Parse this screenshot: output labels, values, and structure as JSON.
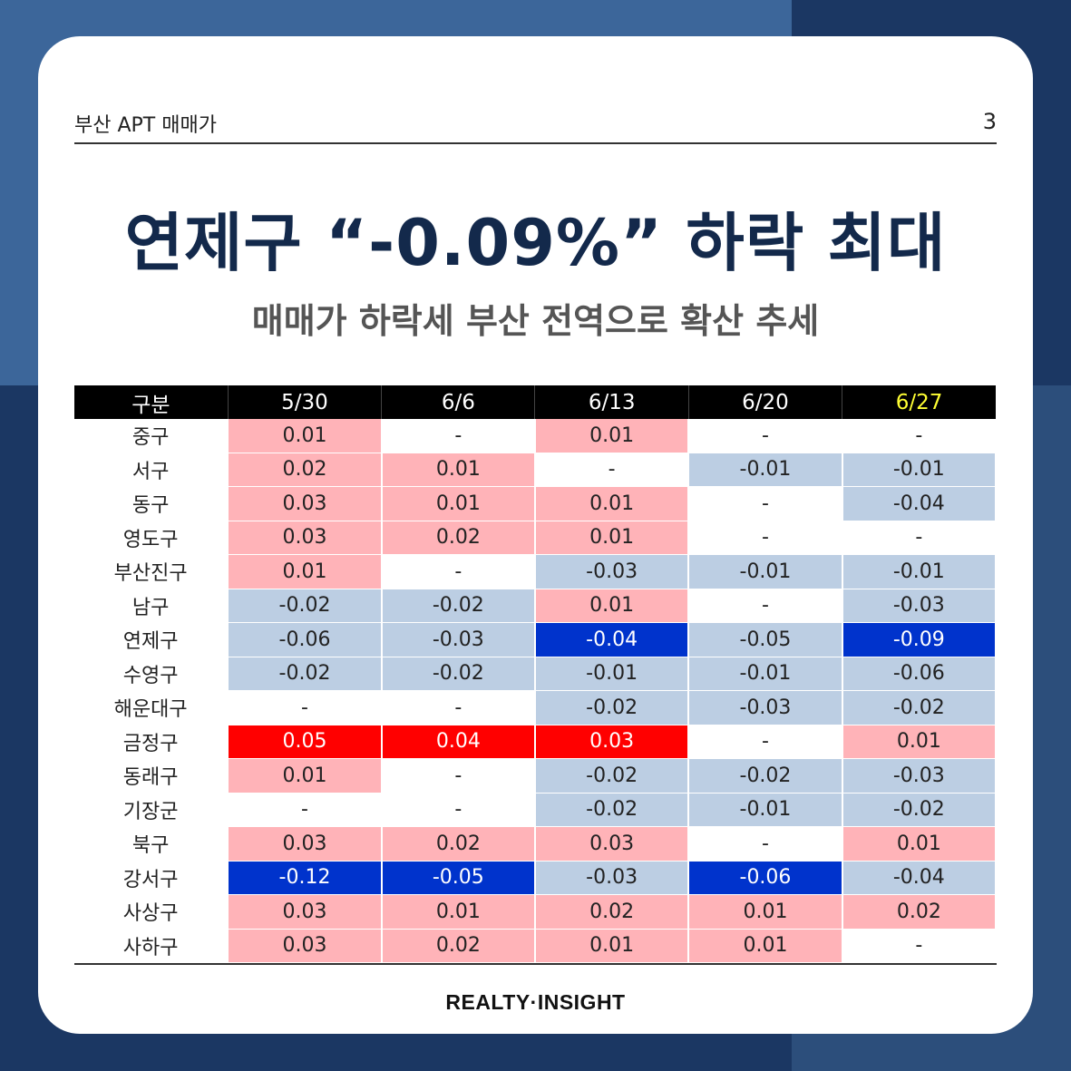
{
  "header": {
    "section": "부산 APT 매매가",
    "page_number": "3"
  },
  "title": "연제구 “-0.09%” 하락 최대",
  "subtitle": "매매가 하락세 부산 전역으로 확산 추세",
  "table": {
    "columns": [
      "구분",
      "5/30",
      "6/6",
      "6/13",
      "6/20",
      "6/27"
    ],
    "highlight_column": "6/27",
    "rows": [
      {
        "district": "중구",
        "values": [
          "0.01",
          "-",
          "0.01",
          "-",
          "-"
        ]
      },
      {
        "district": "서구",
        "values": [
          "0.02",
          "0.01",
          "-",
          "-0.01",
          "-0.01"
        ]
      },
      {
        "district": "동구",
        "values": [
          "0.03",
          "0.01",
          "0.01",
          "-",
          "-0.04"
        ]
      },
      {
        "district": "영도구",
        "values": [
          "0.03",
          "0.02",
          "0.01",
          "-",
          "-"
        ]
      },
      {
        "district": "부산진구",
        "values": [
          "0.01",
          "-",
          "-0.03",
          "-0.01",
          "-0.01"
        ]
      },
      {
        "district": "남구",
        "values": [
          "-0.02",
          "-0.02",
          "0.01",
          "-",
          "-0.03"
        ]
      },
      {
        "district": "연제구",
        "values": [
          "-0.06",
          "-0.03",
          "-0.04",
          "-0.05",
          "-0.09"
        ]
      },
      {
        "district": "수영구",
        "values": [
          "-0.02",
          "-0.02",
          "-0.01",
          "-0.01",
          "-0.06"
        ]
      },
      {
        "district": "해운대구",
        "values": [
          "-",
          "-",
          "-0.02",
          "-0.03",
          "-0.02"
        ]
      },
      {
        "district": "금정구",
        "values": [
          "0.05",
          "0.04",
          "0.03",
          "-",
          "0.01"
        ]
      },
      {
        "district": "동래구",
        "values": [
          "0.01",
          "-",
          "-0.02",
          "-0.02",
          "-0.03"
        ]
      },
      {
        "district": "기장군",
        "values": [
          "-",
          "-",
          "-0.02",
          "-0.01",
          "-0.02"
        ]
      },
      {
        "district": "북구",
        "values": [
          "0.03",
          "0.02",
          "0.03",
          "-",
          "0.01"
        ]
      },
      {
        "district": "강서구",
        "values": [
          "-0.12",
          "-0.05",
          "-0.03",
          "-0.06",
          "-0.04"
        ]
      },
      {
        "district": "사상구",
        "values": [
          "0.03",
          "0.01",
          "0.02",
          "0.01",
          "0.02"
        ]
      },
      {
        "district": "사하구",
        "values": [
          "0.03",
          "0.02",
          "0.01",
          "0.01",
          "-"
        ]
      }
    ],
    "strong_cells": [
      {
        "row": 6,
        "col": 2,
        "type": "sneg"
      },
      {
        "row": 6,
        "col": 4,
        "type": "sneg"
      },
      {
        "row": 9,
        "col": 0,
        "type": "spos"
      },
      {
        "row": 9,
        "col": 1,
        "type": "spos"
      },
      {
        "row": 9,
        "col": 2,
        "type": "spos"
      },
      {
        "row": 13,
        "col": 0,
        "type": "sneg"
      },
      {
        "row": 13,
        "col": 1,
        "type": "sneg"
      },
      {
        "row": 13,
        "col": 3,
        "type": "sneg"
      }
    ],
    "colors": {
      "positive": "#ffb3b8",
      "negative": "#bccee3",
      "strong_positive": "#ff0000",
      "strong_negative": "#0033cc",
      "header_bg": "#000000",
      "header_highlight": "#ffff33"
    }
  },
  "footer": {
    "brand": "REALTY·INSIGHT"
  }
}
